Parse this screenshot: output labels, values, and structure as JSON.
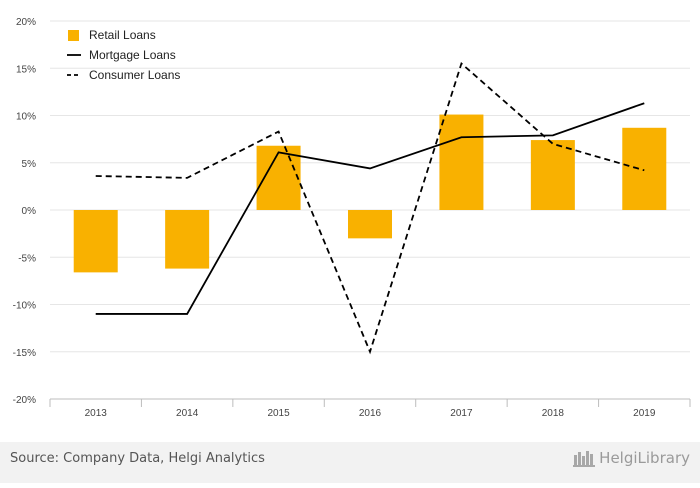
{
  "chart_data": {
    "type": "bar",
    "categories": [
      "2013",
      "2014",
      "2015",
      "2016",
      "2017",
      "2018",
      "2019"
    ],
    "series": [
      {
        "name": "Retail Loans",
        "kind": "bar",
        "color": "#F9B100",
        "values": [
          -6.6,
          -6.2,
          6.8,
          -3.0,
          10.1,
          7.4,
          8.7
        ]
      },
      {
        "name": "Mortgage Loans",
        "kind": "line",
        "style": "solid",
        "color": "#000000",
        "values": [
          -11.0,
          -11.0,
          6.1,
          4.4,
          7.7,
          7.9,
          11.3
        ]
      },
      {
        "name": "Consumer Loans",
        "kind": "line",
        "style": "dashed",
        "color": "#000000",
        "values": [
          3.6,
          3.4,
          8.3,
          -15.0,
          15.5,
          7.0,
          4.2
        ]
      }
    ],
    "ylim": [
      -20,
      20
    ],
    "yticks": [
      -20,
      -15,
      -10,
      -5,
      0,
      5,
      10,
      15,
      20
    ],
    "ytick_labels": [
      "-20%",
      "-15%",
      "-10%",
      "-5%",
      "0%",
      "5%",
      "10%",
      "15%",
      "20%"
    ],
    "grid": true,
    "legend_position": "top-left",
    "xlabel": "",
    "ylabel": ""
  },
  "footer": {
    "source": "Source: Company Data, Helgi Analytics",
    "brand": "HelgiLibrary"
  }
}
